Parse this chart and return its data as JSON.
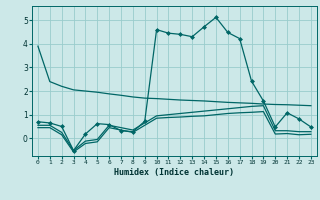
{
  "xlabel": "Humidex (Indice chaleur)",
  "bg_color": "#cce8e8",
  "line_color": "#006666",
  "grid_color": "#99cccc",
  "x_ticks": [
    0,
    1,
    2,
    3,
    4,
    5,
    6,
    7,
    8,
    9,
    10,
    11,
    12,
    13,
    14,
    15,
    16,
    17,
    18,
    19,
    20,
    21,
    22,
    23
  ],
  "ylim": [
    -0.75,
    5.6
  ],
  "xlim": [
    -0.5,
    23.5
  ],
  "series1_x": [
    0,
    1,
    2,
    3,
    4,
    5,
    6,
    7,
    8,
    9,
    10,
    11,
    12,
    13,
    14,
    15,
    16,
    17,
    18,
    19,
    20,
    21,
    22,
    23
  ],
  "series1_y": [
    3.9,
    2.4,
    2.2,
    2.05,
    2.0,
    1.95,
    1.88,
    1.82,
    1.75,
    1.7,
    1.68,
    1.65,
    1.62,
    1.6,
    1.58,
    1.55,
    1.52,
    1.5,
    1.48,
    1.45,
    1.43,
    1.42,
    1.4,
    1.38
  ],
  "series2_x": [
    0,
    1,
    2,
    3,
    4,
    5,
    6,
    7,
    8,
    9,
    10,
    11,
    12,
    13,
    14,
    15,
    16,
    17,
    18,
    19,
    20,
    21,
    22,
    23
  ],
  "series2_y": [
    0.7,
    0.65,
    0.5,
    -0.52,
    0.18,
    0.62,
    0.58,
    0.32,
    0.28,
    0.72,
    4.6,
    4.45,
    4.4,
    4.3,
    4.72,
    5.12,
    4.48,
    4.22,
    2.42,
    1.58,
    0.48,
    1.08,
    0.82,
    0.48
  ],
  "series3_x": [
    0,
    1,
    2,
    3,
    4,
    5,
    6,
    7,
    8,
    9,
    10,
    11,
    12,
    13,
    14,
    15,
    16,
    17,
    18,
    19,
    20,
    21,
    22,
    23
  ],
  "series3_y": [
    0.55,
    0.55,
    0.25,
    -0.52,
    -0.12,
    -0.05,
    0.55,
    0.45,
    0.35,
    0.65,
    0.95,
    1.0,
    1.05,
    1.1,
    1.15,
    1.2,
    1.25,
    1.3,
    1.35,
    1.38,
    0.32,
    0.32,
    0.28,
    0.28
  ],
  "series4_x": [
    0,
    1,
    2,
    3,
    4,
    5,
    6,
    7,
    8,
    9,
    10,
    11,
    12,
    13,
    14,
    15,
    16,
    17,
    18,
    19,
    20,
    21,
    22,
    23
  ],
  "series4_y": [
    0.45,
    0.45,
    0.15,
    -0.58,
    -0.22,
    -0.15,
    0.45,
    0.35,
    0.25,
    0.55,
    0.85,
    0.88,
    0.9,
    0.93,
    0.95,
    1.0,
    1.05,
    1.08,
    1.1,
    1.13,
    0.18,
    0.2,
    0.15,
    0.17
  ]
}
